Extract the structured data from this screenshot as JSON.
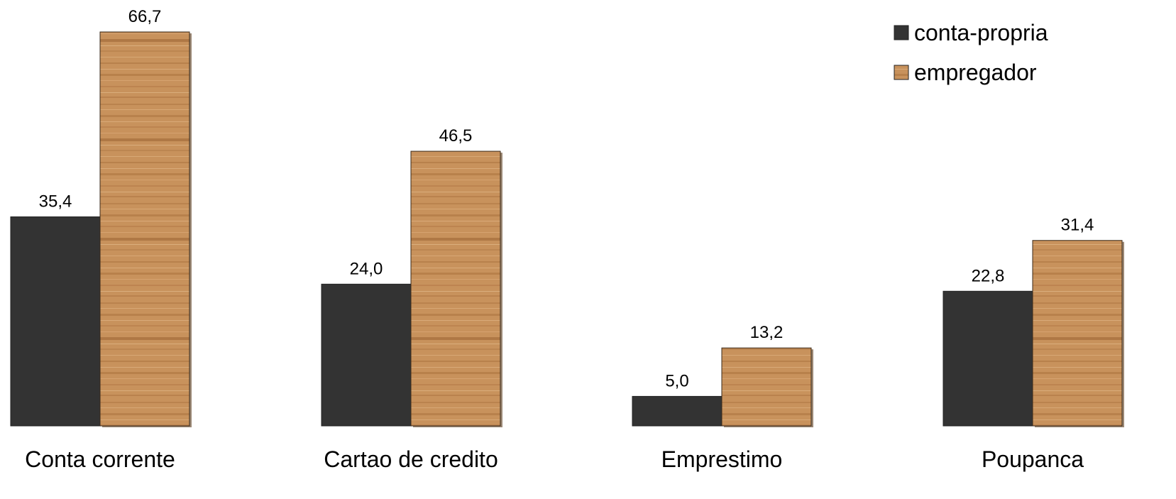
{
  "chart_data": {
    "type": "bar",
    "categories": [
      "Conta corrente",
      "Cartao de credito",
      "Emprestimo",
      "Poupanca"
    ],
    "series": [
      {
        "name": "conta-propria",
        "values": [
          35.4,
          24.0,
          5.0,
          22.8
        ],
        "labels": [
          "35,4",
          "24,0",
          "5,0",
          "22,8"
        ],
        "color": "#333333"
      },
      {
        "name": "empregador",
        "values": [
          66.7,
          46.5,
          13.2,
          31.4
        ],
        "labels": [
          "66,7",
          "46,5",
          "13,2",
          "31,4"
        ],
        "color": "#c9905a"
      }
    ],
    "legend_position": "top-right",
    "grid": false
  }
}
